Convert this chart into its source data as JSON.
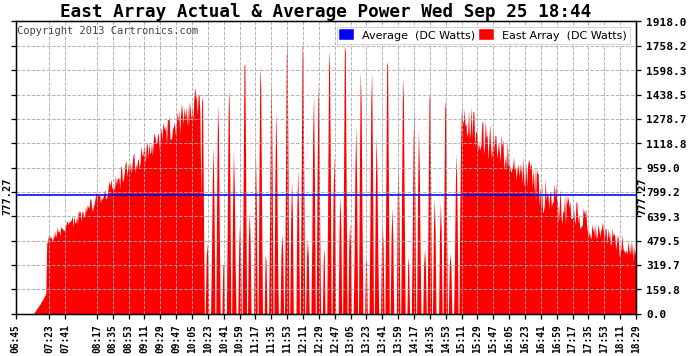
{
  "title": "East Array Actual & Average Power Wed Sep 25 18:44",
  "copyright": "Copyright 2013 Cartronics.com",
  "avg_value": 777.27,
  "ymax": 1918.0,
  "ymin": 0.0,
  "yticks": [
    0.0,
    159.8,
    319.7,
    479.5,
    639.3,
    799.2,
    959.0,
    1118.8,
    1278.7,
    1438.5,
    1598.3,
    1758.2,
    1918.0
  ],
  "ytick_labels": [
    "0.0",
    "159.8",
    "319.7",
    "479.5",
    "639.3",
    "799.2",
    "959.0",
    "1118.8",
    "1278.7",
    "1438.5",
    "1598.3",
    "1758.2",
    "1918.0"
  ],
  "avg_annotation": "777.27",
  "bg_color": "#ffffff",
  "plot_bg_color": "#ffffff",
  "area_color": "#ff0000",
  "line_color": "#0000ff",
  "title_fontsize": 11,
  "legend_avg_color": "#0000ff",
  "legend_east_color": "#ff0000",
  "time_labels": [
    "06:45",
    "07:23",
    "07:41",
    "08:17",
    "08:35",
    "08:53",
    "09:11",
    "09:29",
    "09:47",
    "10:05",
    "10:23",
    "10:41",
    "10:59",
    "11:17",
    "11:35",
    "11:53",
    "12:11",
    "12:29",
    "12:47",
    "13:05",
    "13:23",
    "13:41",
    "13:59",
    "14:17",
    "14:35",
    "14:53",
    "15:11",
    "15:29",
    "15:47",
    "16:05",
    "16:23",
    "16:41",
    "16:59",
    "17:17",
    "17:35",
    "17:53",
    "18:11",
    "18:29"
  ]
}
